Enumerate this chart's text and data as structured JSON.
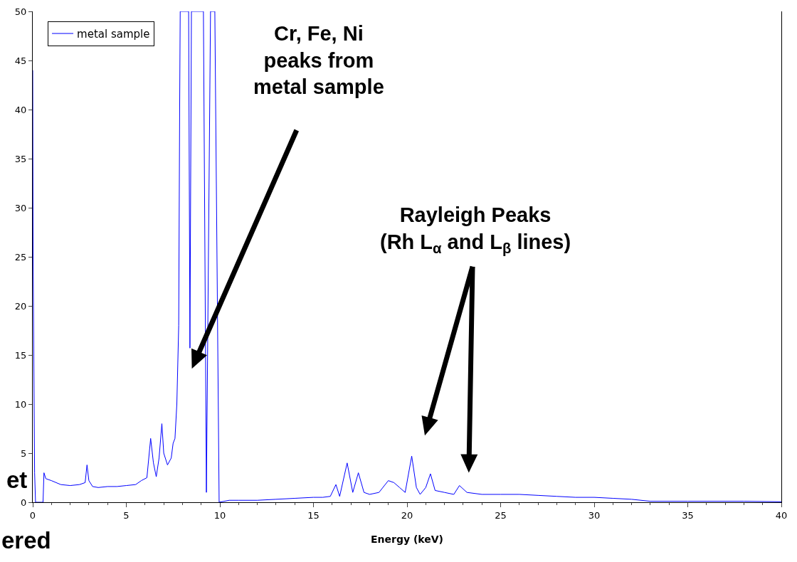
{
  "chart_data": {
    "type": "line",
    "xlabel": "Energy (keV)",
    "legend": "top left",
    "grid": false,
    "marker": "none",
    "line_style": "solid",
    "xlim": [
      0,
      40
    ],
    "xticks": [
      0,
      5,
      10,
      15,
      20,
      25,
      30,
      35,
      40
    ],
    "ylim": [
      0,
      50
    ],
    "yticks": [
      0,
      5,
      10,
      15,
      20,
      25,
      30,
      35,
      40,
      45,
      50
    ],
    "series": [
      {
        "name": "metal sample",
        "color": "#0000ff",
        "x": [
          0,
          0.02,
          0.1,
          0.15,
          0.55,
          0.6,
          0.7,
          1.0,
          1.5,
          2.0,
          2.5,
          2.8,
          2.9,
          3.0,
          3.2,
          3.5,
          4.0,
          4.5,
          5.0,
          5.5,
          5.8,
          6.1,
          6.3,
          6.45,
          6.6,
          6.75,
          6.9,
          7.0,
          7.2,
          7.4,
          7.5,
          7.6,
          7.7,
          7.8,
          7.85,
          7.88,
          8.33,
          8.4,
          8.48,
          9.12,
          9.28,
          9.5,
          9.73,
          9.96,
          10.5,
          11,
          12,
          13,
          14,
          15,
          15.5,
          15.9,
          16.2,
          16.4,
          16.8,
          17.1,
          17.4,
          17.7,
          18.0,
          18.5,
          19.0,
          19.3,
          19.6,
          19.9,
          20.25,
          20.5,
          20.7,
          21.0,
          21.25,
          21.5,
          22,
          22.5,
          22.8,
          23.2,
          24,
          25,
          26,
          27,
          28,
          29,
          30,
          31,
          32,
          33,
          35,
          38,
          40
        ],
        "values": [
          44,
          25,
          3,
          0,
          0,
          3,
          2.4,
          2.2,
          1.8,
          1.7,
          1.8,
          2.0,
          3.8,
          2.2,
          1.6,
          1.5,
          1.6,
          1.6,
          1.7,
          1.8,
          2.2,
          2.5,
          6.5,
          4,
          2.6,
          4.5,
          8,
          5,
          3.8,
          4.5,
          6,
          6.5,
          10,
          18,
          40,
          50,
          50,
          15.7,
          50,
          50,
          1,
          50,
          50,
          0,
          0.2,
          0.2,
          0.2,
          0.3,
          0.4,
          0.5,
          0.5,
          0.6,
          1.8,
          0.6,
          4.0,
          1.0,
          3.0,
          1.0,
          0.8,
          1.0,
          2.2,
          2.0,
          1.5,
          1.0,
          4.7,
          1.5,
          0.8,
          1.5,
          2.9,
          1.2,
          1.0,
          0.8,
          1.7,
          1.0,
          0.8,
          0.8,
          0.8,
          0.7,
          0.6,
          0.5,
          0.5,
          0.4,
          0.3,
          0.1,
          0.1,
          0.1,
          0.05
        ]
      }
    ],
    "annotations": [
      "Cr, Fe, Ni\npeaks from\nmetal sample",
      "Rayleigh Peaks\n(Rh L$_{α}$ and L$_{β}$ lines)",
      "et",
      "ered"
    ]
  }
}
